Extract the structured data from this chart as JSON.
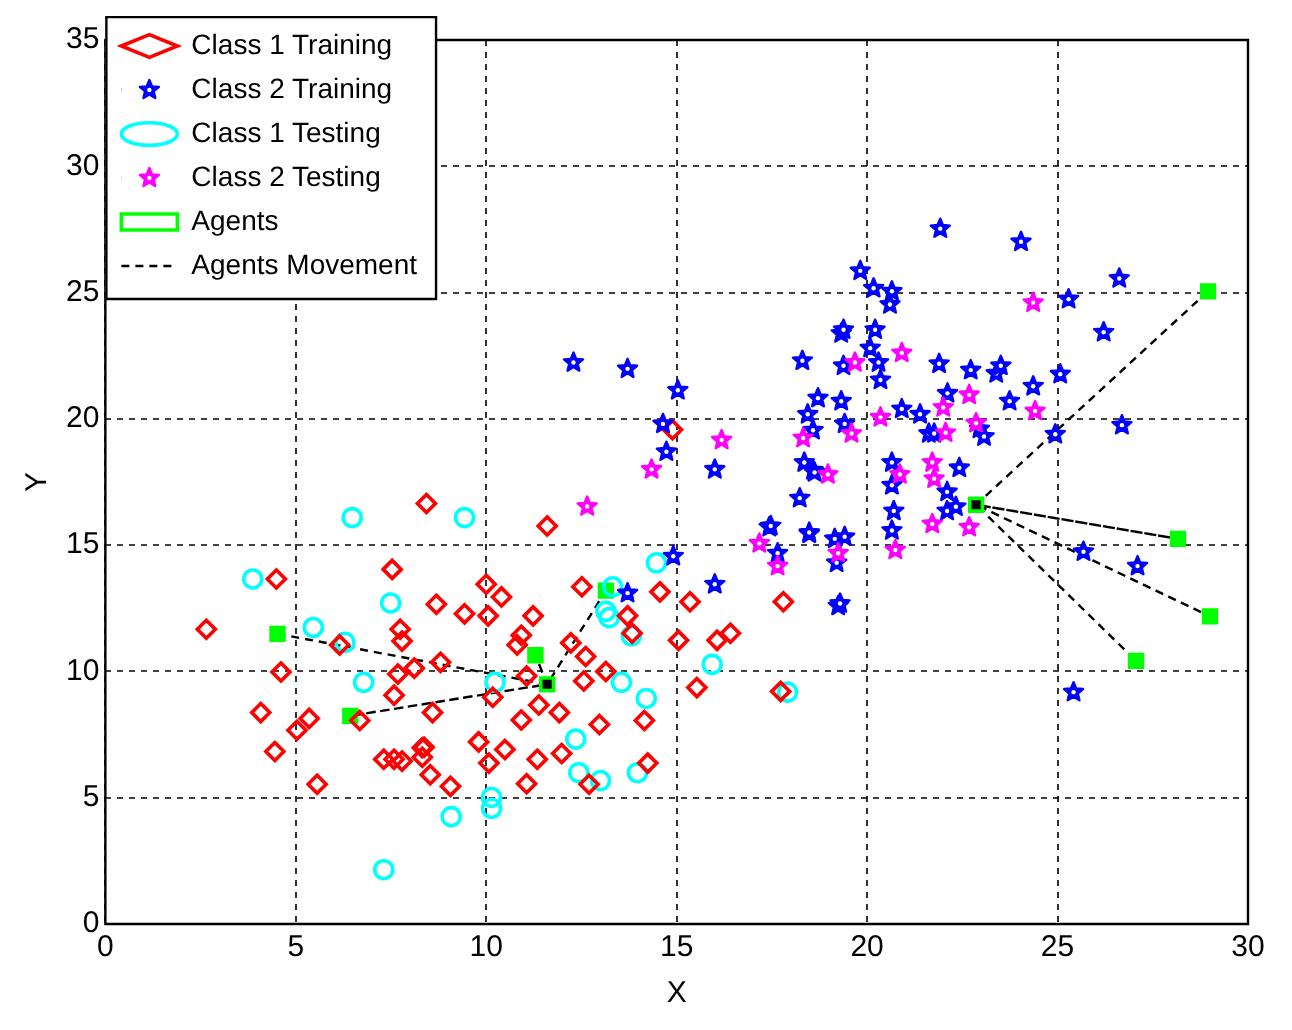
{
  "chart_data": {
    "type": "scatter",
    "xlabel": "X",
    "ylabel": "Y",
    "xlim": [
      0,
      30
    ],
    "ylim": [
      0,
      35
    ],
    "xticks": [
      0,
      5,
      10,
      15,
      20,
      25,
      30
    ],
    "yticks": [
      0,
      5,
      10,
      15,
      20,
      25,
      30,
      35
    ],
    "grid": true,
    "legend": "top left",
    "series": [
      {
        "name": "Class 1 Training",
        "marker": "diamond",
        "color": "#ff0000",
        "x": [
          8.43,
          4.49,
          7.53,
          8.69,
          9.43,
          10.0,
          10.05,
          2.65,
          7.74,
          7.79,
          6.15,
          4.61,
          7.68,
          8.11,
          8.8,
          7.58,
          10.17,
          4.08,
          5.35,
          5.03,
          6.68,
          8.59,
          4.45,
          7.31,
          7.79,
          8.32,
          8.32,
          8.53,
          9.8,
          10.07,
          9.06,
          5.56,
          11.6,
          10.4,
          11.23,
          12.51,
          10.92,
          10.81,
          12.22,
          12.61,
          13.14,
          13.71,
          13.83,
          14.56,
          15.35,
          15.05,
          16.06,
          16.41,
          15.53,
          17.73,
          11.06,
          10.92,
          11.38,
          11.92,
          12.56,
          12.97,
          14.15,
          10.49,
          11.34,
          11.98,
          11.06,
          12.7,
          14.24,
          8.37,
          7.58,
          14.89,
          17.8
        ],
        "values": [
          16.65,
          13.66,
          14.04,
          12.66,
          12.28,
          13.45,
          12.2,
          11.67,
          11.67,
          11.2,
          11.05,
          9.98,
          9.9,
          10.13,
          10.36,
          9.06,
          8.98,
          8.37,
          8.14,
          7.67,
          8.06,
          8.37,
          6.83,
          6.52,
          6.45,
          6.98,
          6.6,
          5.91,
          7.21,
          6.37,
          5.45,
          5.53,
          15.76,
          12.95,
          12.2,
          13.35,
          11.43,
          11.05,
          11.13,
          10.59,
          10.0,
          12.2,
          11.51,
          13.15,
          12.76,
          11.23,
          11.23,
          11.51,
          9.36,
          9.21,
          9.82,
          8.08,
          8.67,
          8.37,
          9.62,
          7.9,
          8.06,
          6.91,
          6.52,
          6.75,
          5.55,
          5.53,
          6.37,
          7.0,
          6.52,
          19.57,
          12.76
        ]
      },
      {
        "name": "Class 2 Training",
        "marker": "star",
        "color": "#0000ff",
        "x": [
          12.29,
          13.71,
          15.03,
          14.64,
          14.73,
          16.0,
          18.3,
          19.32,
          18.23,
          17.43,
          17.65,
          18.48,
          19.15,
          19.41,
          19.2,
          19.24,
          14.91,
          16.0,
          13.71,
          18.35,
          18.58,
          18.44,
          18.58,
          18.71,
          19.32,
          19.41,
          21.92,
          24.04,
          26.62,
          19.82,
          20.17,
          20.65,
          20.6,
          25.29,
          26.21,
          19.38,
          20.21,
          20.08,
          19.38,
          20.3,
          20.35,
          21.89,
          22.72,
          23.39,
          23.51,
          25.07,
          24.36,
          22.11,
          23.74,
          20.91,
          21.39,
          21.62,
          21.76,
          22.95,
          23.07,
          24.94,
          26.69,
          18.62,
          20.65,
          20.65,
          22.42,
          22.1,
          22.1,
          22.33,
          20.7,
          17.47,
          18.48,
          20.65,
          19.29,
          25.68,
          27.1,
          25.42
        ],
        "values": [
          22.23,
          21.98,
          21.13,
          19.8,
          18.7,
          18.0,
          22.3,
          23.38,
          16.86,
          15.71,
          14.68,
          15.45,
          15.25,
          15.33,
          14.3,
          12.59,
          14.56,
          13.45,
          13.1,
          18.27,
          17.96,
          20.18,
          19.55,
          20.82,
          20.7,
          19.8,
          27.53,
          27.01,
          25.56,
          25.86,
          25.17,
          25.05,
          24.53,
          24.74,
          23.43,
          23.53,
          23.53,
          22.8,
          22.1,
          22.23,
          21.54,
          22.18,
          21.93,
          21.8,
          22.1,
          21.77,
          21.29,
          21.01,
          20.7,
          20.39,
          20.18,
          19.42,
          19.42,
          19.6,
          19.3,
          19.39,
          19.75,
          17.88,
          18.27,
          17.37,
          18.06,
          17.11,
          16.35,
          16.52,
          16.35,
          15.76,
          15.5,
          15.58,
          12.69,
          14.74,
          14.17,
          9.18
        ]
      },
      {
        "name": "Class 1 Testing",
        "marker": "circle",
        "color": "#00ffff",
        "x": [
          6.48,
          9.43,
          3.87,
          7.49,
          5.46,
          6.29,
          6.78,
          10.23,
          10.14,
          10.14,
          9.08,
          7.31,
          14.47,
          13.32,
          13.14,
          13.23,
          13.81,
          15.93,
          13.55,
          14.2,
          12.35,
          12.43,
          13.0,
          13.97,
          17.91
        ],
        "values": [
          16.09,
          16.09,
          13.66,
          12.71,
          11.74,
          11.15,
          9.57,
          9.57,
          5.01,
          4.58,
          4.25,
          2.15,
          14.3,
          13.35,
          12.38,
          12.13,
          11.41,
          10.28,
          9.57,
          8.93,
          7.32,
          5.99,
          5.68,
          5.99,
          9.18
        ]
      },
      {
        "name": "Class 2 Testing",
        "marker": "star",
        "color": "#ff00ff",
        "x": [
          12.65,
          14.34,
          16.18,
          17.17,
          17.65,
          18.32,
          19.59,
          19.68,
          18.97,
          19.24,
          20.91,
          20.35,
          20.86,
          21.71,
          21.76,
          21.71,
          20.74,
          24.36,
          22.68,
          24.41,
          22.0,
          22.86,
          22.06,
          22.68
        ],
        "values": [
          16.53,
          18.0,
          19.16,
          15.07,
          14.17,
          19.24,
          19.42,
          22.23,
          17.8,
          14.68,
          22.61,
          20.06,
          17.8,
          18.27,
          17.63,
          15.84,
          14.81,
          24.6,
          20.95,
          20.31,
          20.45,
          19.83,
          19.45,
          15.71
        ]
      },
      {
        "name": "Agents",
        "marker": "square",
        "color": "#00ff00",
        "colors": [
          "#00ff00",
          "#00ff00",
          "#00ff00",
          "#00ff00",
          "#000000",
          "#00ff00",
          "#00ff00",
          "#00ff00",
          "#00ff00",
          "#000000"
        ],
        "x": [
          4.52,
          6.43,
          11.29,
          13.14,
          11.6,
          28.95,
          28.16,
          29.0,
          27.06,
          22.86
        ],
        "values": [
          11.49,
          8.24,
          10.64,
          13.2,
          9.49,
          25.05,
          15.25,
          12.18,
          10.42,
          16.6
        ]
      },
      {
        "name": "Agents Movement",
        "type": "line",
        "marker": "none",
        "line_style": "dashed",
        "color": "#000000",
        "x": [
          4.52,
          11.6,
          6.43,
          11.6,
          11.29,
          11.6,
          13.14
        ],
        "values": [
          11.49,
          9.49,
          8.24,
          9.49,
          10.64,
          9.49,
          13.2
        ]
      },
      {
        "type": "line",
        "marker": "none",
        "line_style": "dashed",
        "color": "#000000",
        "x": [
          28.95,
          22.86,
          28.16,
          22.86,
          29.0,
          22.86,
          27.06
        ],
        "values": [
          25.05,
          16.6,
          15.25,
          16.6,
          12.18,
          16.6,
          10.42
        ]
      }
    ]
  }
}
